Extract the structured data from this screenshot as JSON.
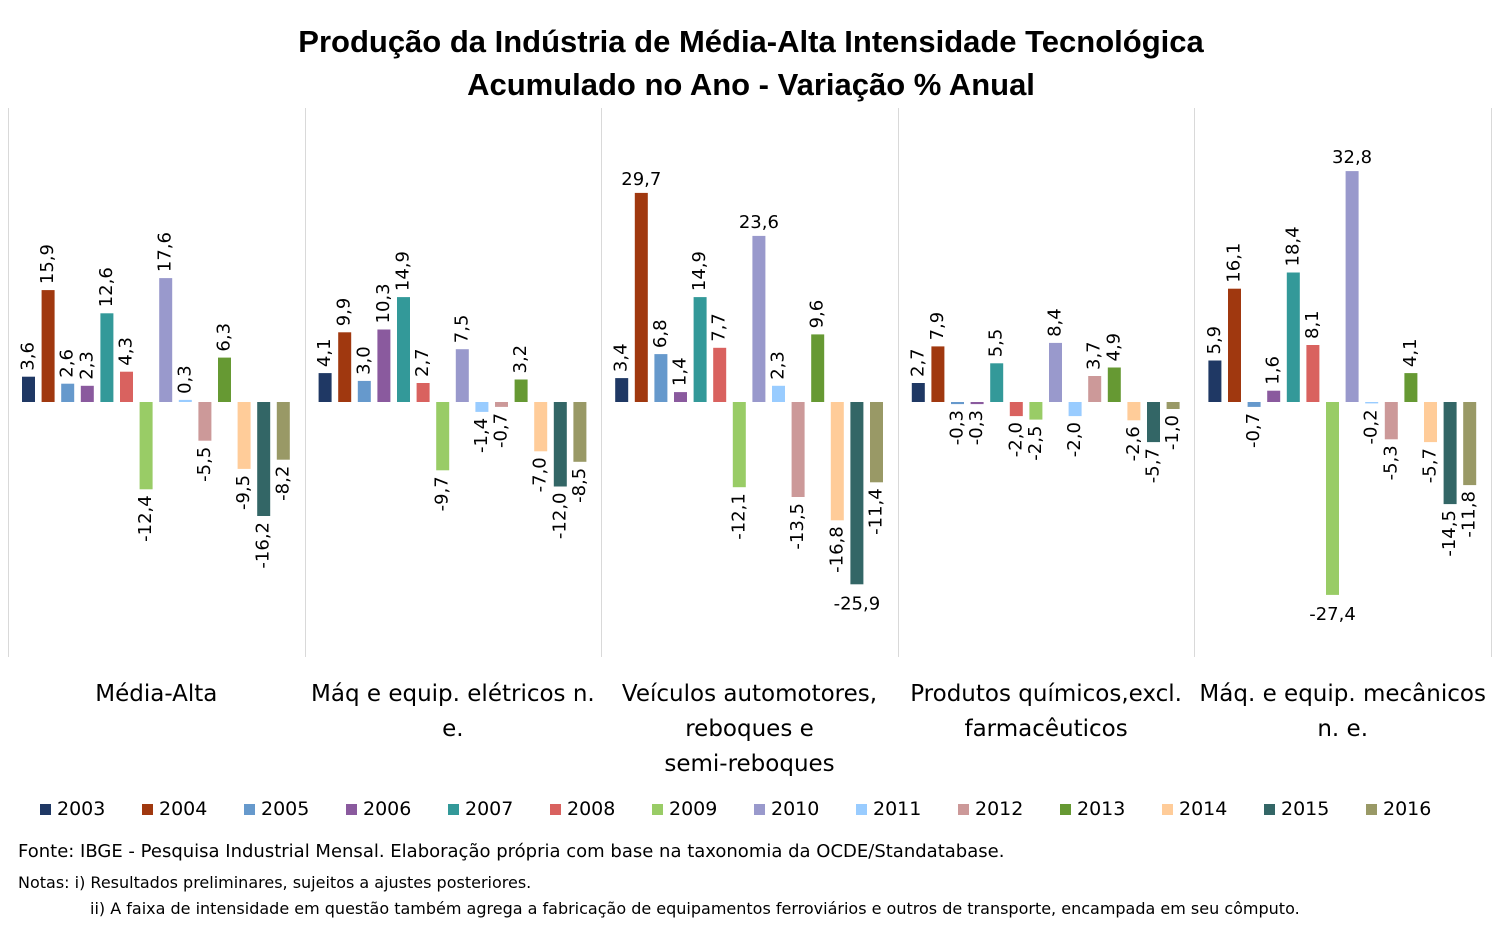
{
  "chart_data": {
    "type": "bar",
    "title": "Produção da Indústria de Média-Alta Intensidade Tecnológica",
    "subtitle": "Acumulado no Ano - Variação % Anual",
    "categories": [
      "Média-Alta",
      "Máq e equip. elétricos n. e.",
      "Veículos automotores, reboques e semi-reboques",
      "Produtos químicos,excl. farmacêuticos",
      "Máq. e equip. mecânicos n. e."
    ],
    "series": [
      {
        "name": "2003",
        "color": "#1f3864",
        "values": [
          3.6,
          4.1,
          3.4,
          2.7,
          5.9
        ],
        "labels": [
          "3,6",
          "4,1",
          "3,4",
          "2,7",
          "5,9"
        ]
      },
      {
        "name": "2004",
        "color": "#a0380f",
        "values": [
          15.9,
          9.9,
          29.7,
          7.9,
          16.1
        ],
        "labels": [
          "15,9",
          "9,9",
          "29,7",
          "7,9",
          "16,1"
        ]
      },
      {
        "name": "2005",
        "color": "#6699cc",
        "values": [
          2.6,
          3.0,
          6.8,
          -0.3,
          -0.7
        ],
        "labels": [
          "2,6",
          "3,0",
          "6,8",
          "-0,3",
          "-0,7"
        ]
      },
      {
        "name": "2006",
        "color": "#8a5a9e",
        "values": [
          2.3,
          10.3,
          1.4,
          -0.3,
          1.6
        ],
        "labels": [
          "2,3",
          "10,3",
          "1,4",
          "-0,3",
          "1,6"
        ]
      },
      {
        "name": "2007",
        "color": "#339999",
        "values": [
          12.6,
          14.9,
          14.9,
          5.5,
          18.4
        ],
        "labels": [
          "12,6",
          "14,9",
          "14,9",
          "5,5",
          "18,4"
        ]
      },
      {
        "name": "2008",
        "color": "#d9625f",
        "values": [
          4.3,
          2.7,
          7.7,
          -2.0,
          8.1
        ],
        "labels": [
          "4,3",
          "2,7",
          "7,7",
          "-2,0",
          "8,1"
        ]
      },
      {
        "name": "2009",
        "color": "#99cc66",
        "values": [
          -12.4,
          -9.7,
          -12.1,
          -2.5,
          -27.4
        ],
        "labels": [
          "-12,4",
          "-9,7",
          "-12,1",
          "-2,5",
          "-27,4"
        ]
      },
      {
        "name": "2010",
        "color": "#9999cc",
        "values": [
          17.6,
          7.5,
          23.6,
          8.4,
          32.8
        ],
        "labels": [
          "17,6",
          "7,5",
          "23,6",
          "8,4",
          "32,8"
        ]
      },
      {
        "name": "2011",
        "color": "#99ccff",
        "values": [
          0.3,
          -1.4,
          2.3,
          -2.0,
          -0.2
        ],
        "labels": [
          "0,3",
          "-1,4",
          "2,3",
          "-2,0",
          "-0,2"
        ]
      },
      {
        "name": "2012",
        "color": "#cc9999",
        "values": [
          -5.5,
          -0.7,
          -13.5,
          3.7,
          -5.3
        ],
        "labels": [
          "-5,5",
          "-0,7",
          "-13,5",
          "3,7",
          "-5,3"
        ]
      },
      {
        "name": "2013",
        "color": "#669933",
        "values": [
          6.3,
          3.2,
          9.6,
          4.9,
          4.1
        ],
        "labels": [
          "6,3",
          "3,2",
          "9,6",
          "4,9",
          "4,1"
        ]
      },
      {
        "name": "2014",
        "color": "#ffcc99",
        "values": [
          -9.5,
          -7.0,
          -16.8,
          -2.6,
          -5.7
        ],
        "labels": [
          "-9,5",
          "-7,0",
          "-16,8",
          "-2,6",
          "-5,7"
        ]
      },
      {
        "name": "2015",
        "color": "#336666",
        "values": [
          -16.2,
          -12.0,
          -25.9,
          -5.7,
          -14.5
        ],
        "labels": [
          "-16,2",
          "-12,0",
          "-25,9",
          "-5,7",
          "-14,5"
        ]
      },
      {
        "name": "2016",
        "color": "#999966",
        "values": [
          -8.2,
          -8.5,
          -11.4,
          -1.0,
          -11.8
        ],
        "labels": [
          "-8,2",
          "-8,5",
          "-11,4",
          "-1,0",
          "-11,8"
        ]
      }
    ],
    "ylim": [
      -30,
      35
    ],
    "grid": false,
    "legend_position": "bottom"
  },
  "notes": {
    "source": "Fonte:  IBGE - Pesquisa Industrial Mensal. Elaboração própria com base na taxonomia da OCDE/Standatabase.",
    "note1": "Notas: i) Resultados preliminares,  sujeitos a ajustes posteriores.",
    "note2": "ii) A faixa de intensidade em questão também agrega a fabricação de equipamentos ferroviários e outros de transporte, encampada em seu cômputo."
  }
}
